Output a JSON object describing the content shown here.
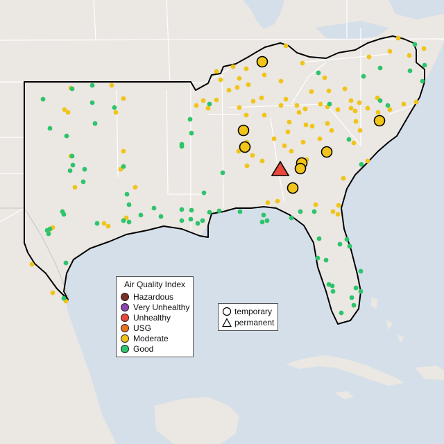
{
  "map": {
    "colors": {
      "water": "#d4dfe9",
      "land": "#ebe7e3",
      "land_dark": "#e3ded8",
      "border": "#000000",
      "state_lines": "#ffffff"
    },
    "aqi_colors": {
      "good": "#2dc46b",
      "moderate": "#f0c419",
      "usg": "#e8741c",
      "unhealthy": "#e8493a",
      "very_unhealthy": "#8e44ad",
      "hazardous": "#7a2e26"
    }
  },
  "legend": {
    "title": "Air Quality Index",
    "items": [
      {
        "label": "Hazardous",
        "color": "#7a2e26"
      },
      {
        "label": "Very Unhealthy",
        "color": "#8e44ad"
      },
      {
        "label": "Unhealthy",
        "color": "#e8493a"
      },
      {
        "label": "USG",
        "color": "#e8741c"
      },
      {
        "label": "Moderate",
        "color": "#f0c419"
      },
      {
        "label": "Good",
        "color": "#2dc46b"
      }
    ]
  },
  "type_legend": {
    "temporary": "temporary",
    "permanent": "permanent"
  }
}
